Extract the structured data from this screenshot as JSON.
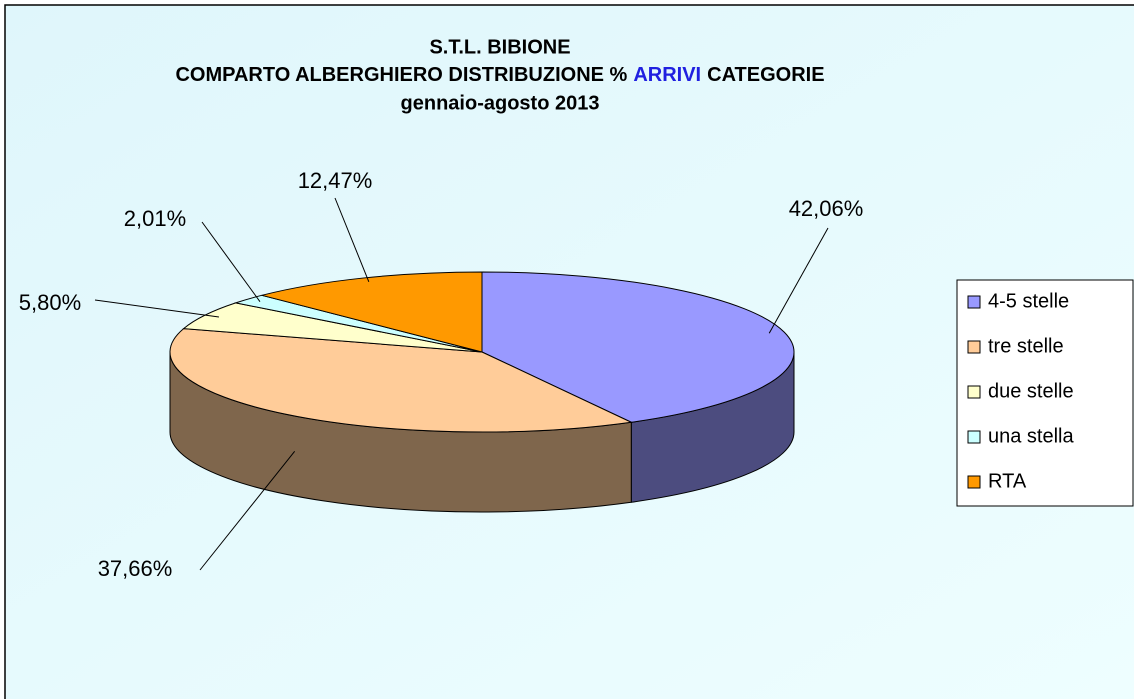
{
  "chart_data": {
    "type": "pie3d",
    "title": {
      "line1": "S.T.L. BIBIONE",
      "line2": [
        "COMPARTO ALBERGHIERO DISTRIBUZIONE %",
        "ARRIVI",
        "CATEGORIE"
      ],
      "line3": "gennaio-agosto 2013"
    },
    "title_highlight_color": "#2020e0",
    "categories": [
      "4-5 stelle",
      "tre stelle",
      "due stelle",
      "una stella",
      "RTA"
    ],
    "values": [
      42.06,
      37.66,
      5.8,
      2.01,
      12.47
    ],
    "value_labels": [
      "42,06%",
      "37,66%",
      "5,80%",
      "2,01%",
      "12,47%"
    ],
    "colors": [
      "#9999ff",
      "#ffcc99",
      "#ffffcc",
      "#ccffff",
      "#ff9900"
    ],
    "legend": "right"
  }
}
